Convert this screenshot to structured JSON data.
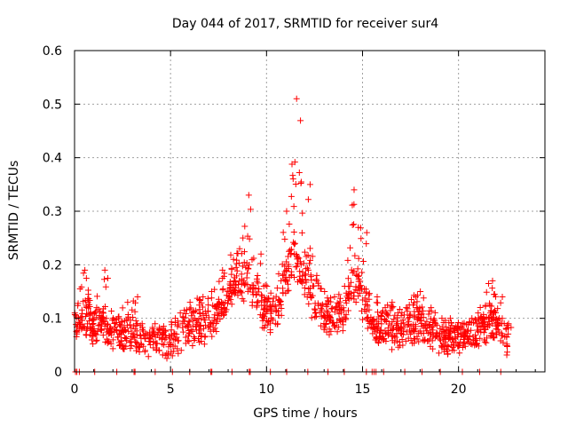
{
  "chart_data": {
    "type": "scatter",
    "title": "Day 044 of 2017, SRMTID for receiver sur4",
    "xlabel": "GPS time / hours",
    "ylabel": "SRMTID / TECUs",
    "xlim": [
      0,
      24.5
    ],
    "ylim": [
      0,
      0.6
    ],
    "xticks": [
      0,
      5,
      10,
      15,
      20
    ],
    "xtick_labels": [
      "0",
      "5",
      "10",
      "15",
      "20"
    ],
    "yticks": [
      0,
      0.1,
      0.2,
      0.3,
      0.4,
      0.5,
      0.6
    ],
    "ytick_labels": [
      "0",
      "0.1",
      "0.2",
      "0.3",
      "0.4",
      "0.5",
      "0.6"
    ],
    "grid": true,
    "marker": "plus",
    "color": "#ff0000",
    "series": [
      {
        "name": "SRMTID",
        "envelope": {
          "description": "approximate per-hour baseline and peak of the plus-marker cloud",
          "x": [
            0,
            0.5,
            1,
            1.5,
            2,
            2.5,
            3,
            3.5,
            4,
            4.5,
            5,
            5.5,
            6,
            6.5,
            7,
            7.5,
            8,
            8.5,
            9,
            9.5,
            10,
            10.5,
            11,
            11.5,
            12,
            12.5,
            13,
            13.5,
            14,
            14.5,
            15,
            15.5,
            16,
            16.5,
            17,
            17.5,
            18,
            18.5,
            19,
            19.5,
            20,
            20.5,
            21,
            21.5,
            22,
            22.5
          ],
          "baseline": [
            0.08,
            0.09,
            0.07,
            0.08,
            0.06,
            0.06,
            0.06,
            0.05,
            0.05,
            0.05,
            0.05,
            0.06,
            0.07,
            0.08,
            0.08,
            0.1,
            0.13,
            0.15,
            0.15,
            0.12,
            0.1,
            0.1,
            0.15,
            0.2,
            0.15,
            0.12,
            0.1,
            0.09,
            0.09,
            0.15,
            0.12,
            0.08,
            0.07,
            0.07,
            0.07,
            0.08,
            0.08,
            0.07,
            0.06,
            0.06,
            0.06,
            0.06,
            0.07,
            0.08,
            0.08,
            0.06
          ],
          "peak": [
            0.11,
            0.19,
            0.12,
            0.19,
            0.1,
            0.13,
            0.14,
            0.09,
            0.09,
            0.08,
            0.1,
            0.11,
            0.13,
            0.14,
            0.15,
            0.19,
            0.21,
            0.25,
            0.33,
            0.22,
            0.16,
            0.17,
            0.3,
            0.51,
            0.35,
            0.18,
            0.15,
            0.14,
            0.16,
            0.34,
            0.26,
            0.14,
            0.12,
            0.13,
            0.12,
            0.14,
            0.15,
            0.12,
            0.1,
            0.1,
            0.09,
            0.1,
            0.11,
            0.17,
            0.14,
            0.09
          ]
        },
        "baseline_markers_x": [
          0.05,
          0.12,
          0.25,
          1.05,
          2.2,
          3.1,
          3.15,
          4.2,
          5.1,
          6.0,
          7.1,
          7.15,
          8.2,
          9.1,
          9.15,
          10.2,
          11.05,
          12.15,
          13.2,
          14.05,
          15.2,
          15.5,
          15.6,
          15.7,
          16.1,
          17.2,
          18.1,
          19.05,
          20.2,
          21.1,
          22.2
        ]
      }
    ]
  }
}
